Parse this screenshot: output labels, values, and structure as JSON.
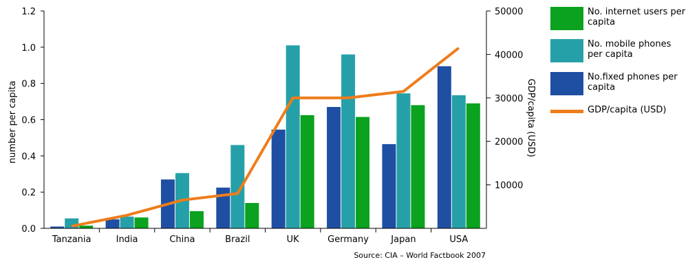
{
  "chart_data": {
    "type": "bar",
    "categories": [
      "Tanzania",
      "India",
      "China",
      "Brazil",
      "UK",
      "Germany",
      "Japan",
      "USA"
    ],
    "series": [
      {
        "name": "No.fixed phones per capita",
        "axis": "left",
        "values": [
          0.01,
          0.05,
          0.27,
          0.225,
          0.545,
          0.67,
          0.465,
          0.895
        ]
      },
      {
        "name": "No. mobile phones per capita",
        "axis": "left",
        "values": [
          0.055,
          0.065,
          0.305,
          0.46,
          1.01,
          0.96,
          0.745,
          0.735
        ]
      },
      {
        "name": "No. internet users per capita",
        "axis": "left",
        "values": [
          0.015,
          0.06,
          0.095,
          0.14,
          0.625,
          0.615,
          0.68,
          0.69
        ]
      },
      {
        "name": "GDP/capita (USD)",
        "axis": "right",
        "type": "line",
        "values": [
          500,
          3000,
          6500,
          8000,
          30000,
          30000,
          31500,
          41500
        ]
      }
    ],
    "ylabel": "number per capita",
    "ylim": [
      0,
      1.2
    ],
    "yticks": [
      "0.0",
      "0.2",
      "0.4",
      "0.6",
      "0.8",
      "1.0",
      "1.2"
    ],
    "y2label": "GDP/capita (USD)",
    "y2lim": [
      0,
      50000
    ],
    "y2ticks": [
      "10000",
      "20000",
      "30000",
      "40000",
      "50000"
    ],
    "source": "Source: CIA – World Factbook 2007",
    "legend_position": "right",
    "legend": [
      {
        "label": "No. internet users per capita",
        "color": "#0aa21e",
        "kind": "bar"
      },
      {
        "label": "No. mobile phones per capita",
        "color": "#26a0a8",
        "kind": "bar"
      },
      {
        "label": "No.fixed phones per capita",
        "color": "#1f4fa3",
        "kind": "bar"
      },
      {
        "label": "GDP/capita (USD)",
        "color": "#ee7d1b",
        "kind": "line"
      }
    ],
    "colors": {
      "fixed": "#1f4fa3",
      "mobile": "#26a0a8",
      "internet": "#0aa21e",
      "gdp": "#ee7d1b"
    }
  }
}
